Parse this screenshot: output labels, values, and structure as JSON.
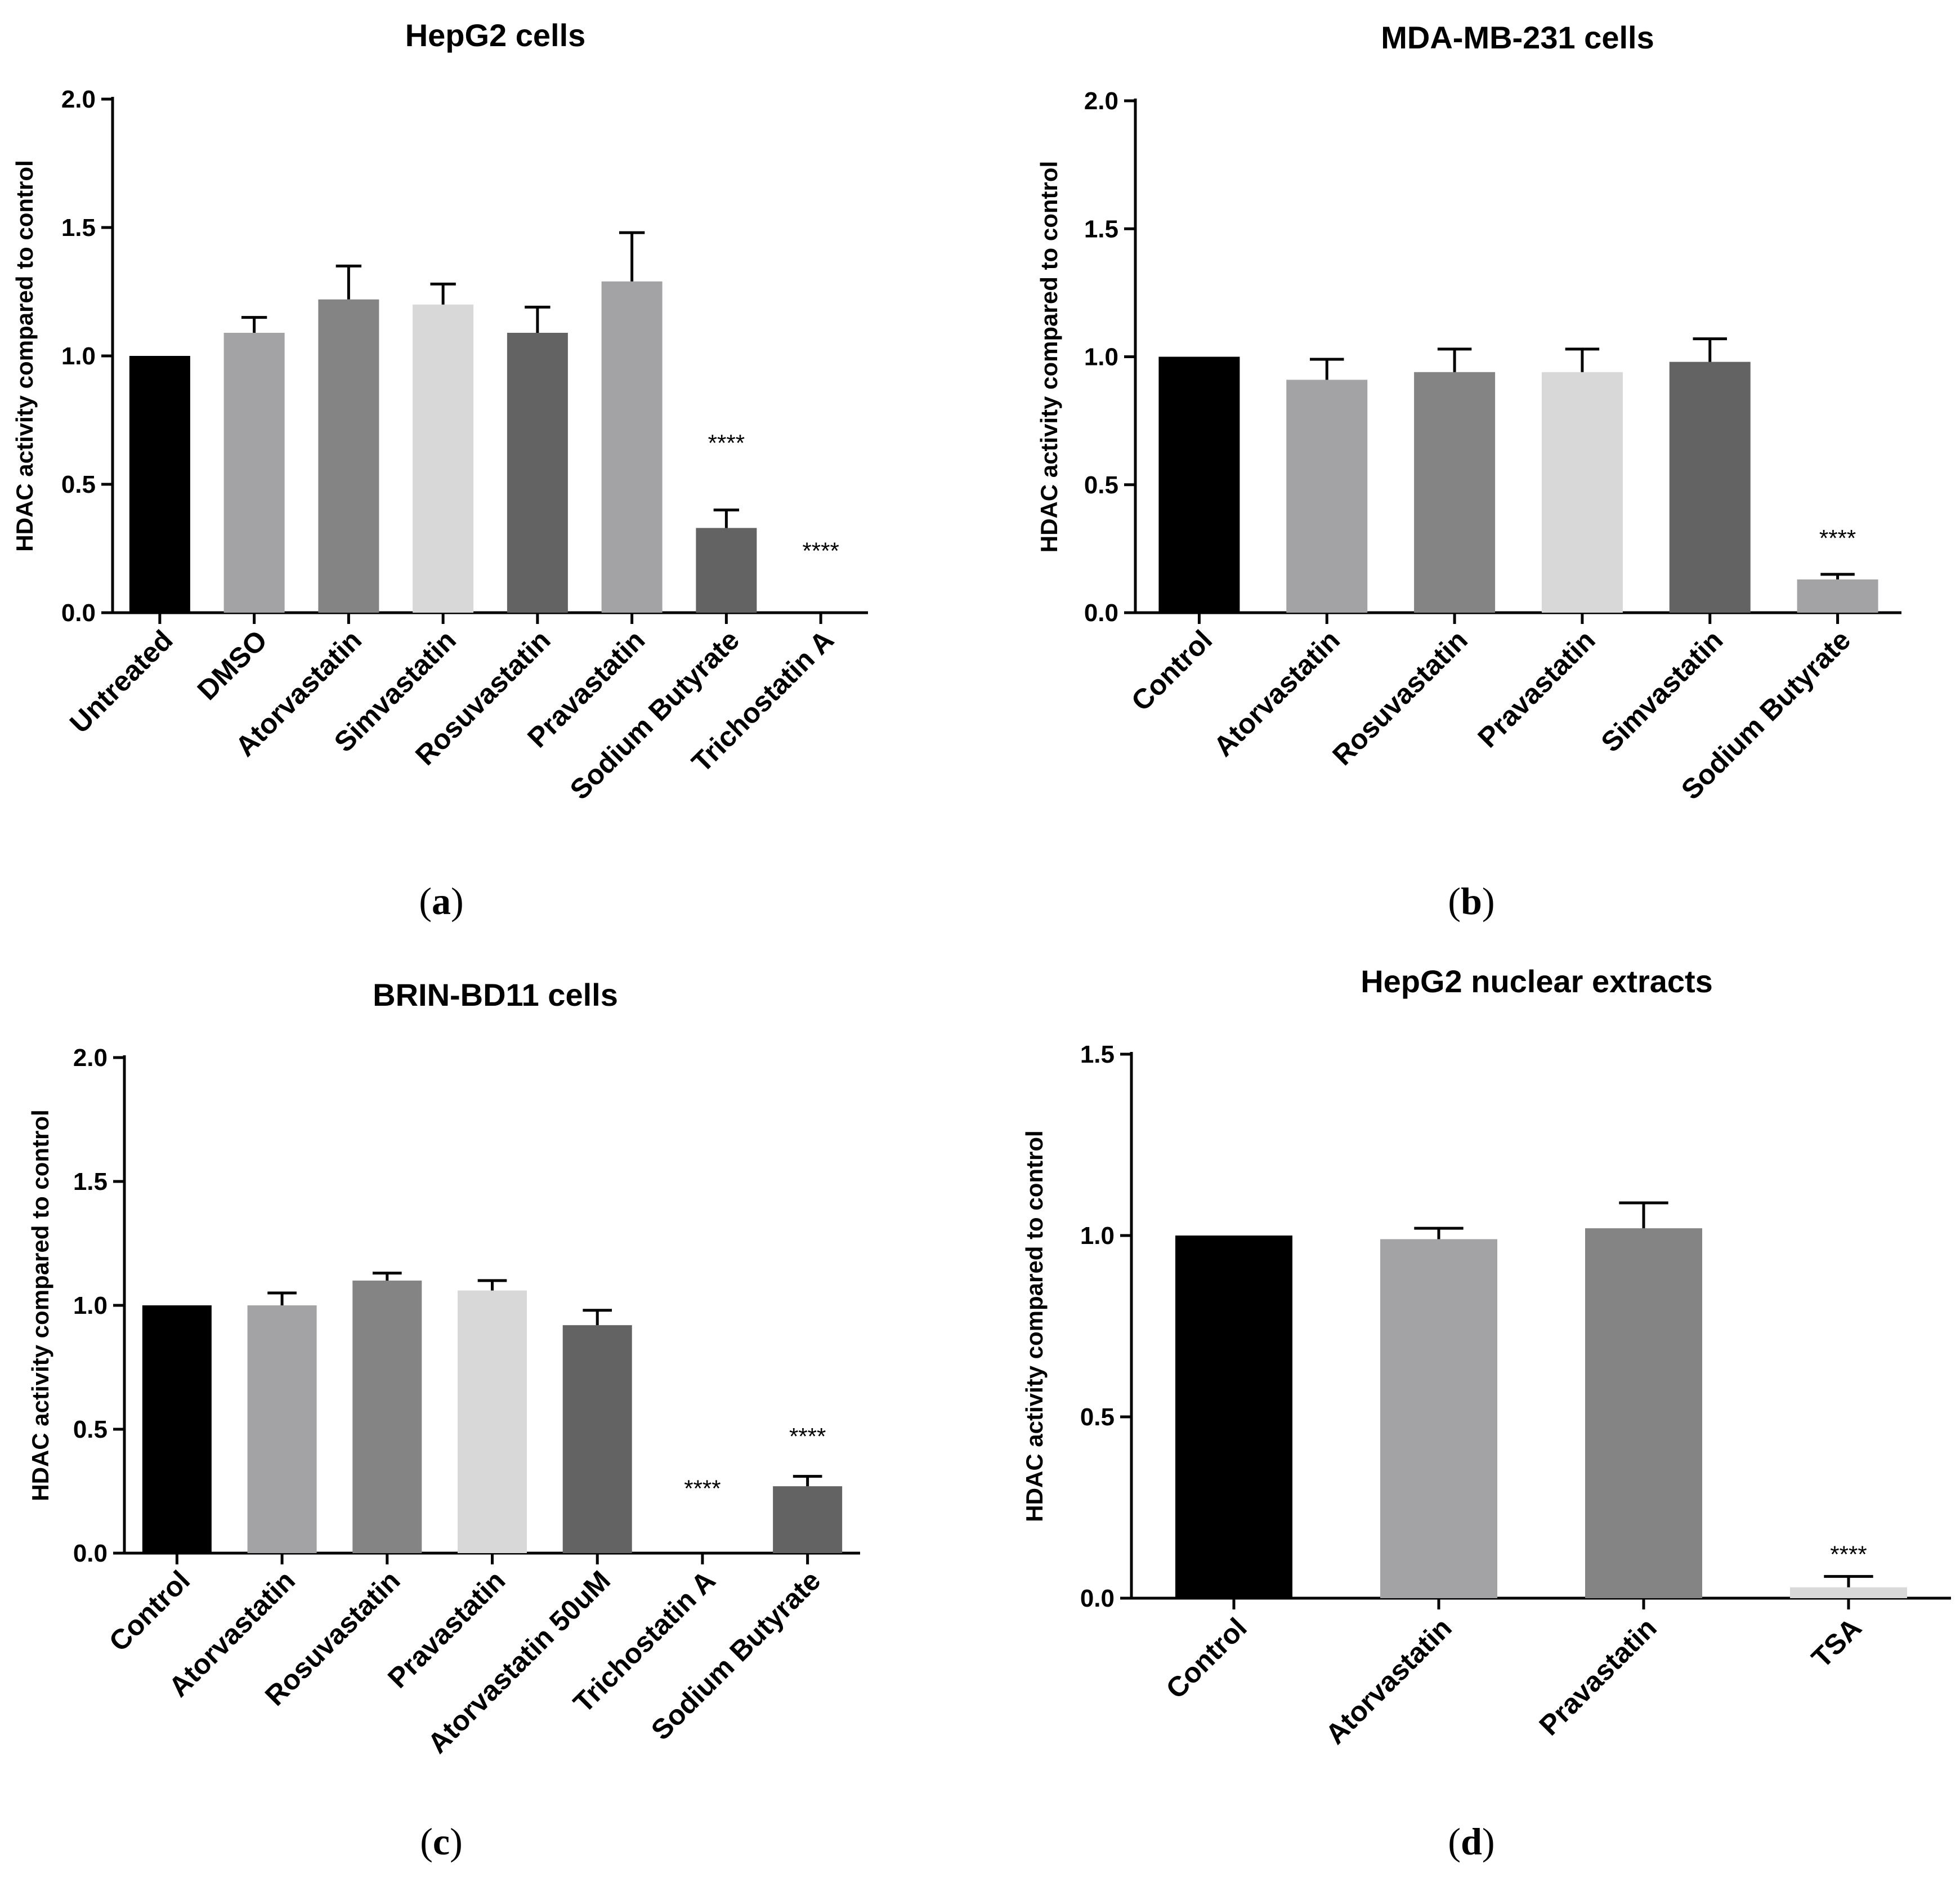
{
  "colors": {
    "black": "#000000",
    "mid_gray": "#a3a3a6",
    "dark_gray": "#848484",
    "light_gray": "#d8d8d8",
    "darker_gray": "#636363",
    "pale": "#d9d9d9"
  },
  "chart_data": [
    {
      "id": "a",
      "type": "bar",
      "title": "HepG2 cells",
      "panel_label": "a",
      "ylabel": "HDAC activity compared to control",
      "xlabel": "",
      "ylim": [
        0,
        2.0
      ],
      "yticks": [
        "0.0",
        "0.5",
        "1.0",
        "1.5",
        "2.0"
      ],
      "categories": [
        "Untreated",
        "DMSO",
        "Atorvastatin",
        "Simvastatin",
        "Rosuvastatin",
        "Pravastatin",
        "Sodium Butyrate",
        "Trichostatin A"
      ],
      "values": [
        1.0,
        1.09,
        1.22,
        1.2,
        1.09,
        1.29,
        0.33,
        0.0
      ],
      "errors": [
        0.0,
        0.06,
        0.13,
        0.08,
        0.1,
        0.19,
        0.07,
        0.0
      ],
      "bar_colors": [
        "#000000",
        "#a3a3a6",
        "#848484",
        "#d8d8d8",
        "#636363",
        "#a3a3a6",
        "#636363",
        "#d8d8d8"
      ],
      "significance": [
        "",
        "",
        "",
        "",
        "",
        "",
        "****",
        "****"
      ],
      "sig_values": [
        null,
        null,
        null,
        null,
        null,
        null,
        0.66,
        0.24
      ]
    },
    {
      "id": "b",
      "type": "bar",
      "title": "MDA-MB-231 cells",
      "panel_label": "b",
      "ylabel": "HDAC activity compared to control",
      "xlabel": "",
      "ylim": [
        0,
        2.0
      ],
      "yticks": [
        "0.0",
        "0.5",
        "1.0",
        "1.5",
        "2.0"
      ],
      "categories": [
        "Control",
        "Atorvastatin",
        "Rosuvastatin",
        "Pravastatin",
        "Simvastatin",
        "Sodium Butyrate"
      ],
      "values": [
        1.0,
        0.91,
        0.94,
        0.94,
        0.98,
        0.13
      ],
      "errors": [
        0.0,
        0.08,
        0.09,
        0.09,
        0.09,
        0.02
      ],
      "bar_colors": [
        "#000000",
        "#a3a3a6",
        "#848484",
        "#d8d8d8",
        "#636363",
        "#a3a3a6"
      ],
      "significance": [
        "",
        "",
        "",
        "",
        "",
        "****"
      ],
      "sig_values": [
        null,
        null,
        null,
        null,
        null,
        0.29
      ]
    },
    {
      "id": "c",
      "type": "bar",
      "title": "BRIN-BD11 cells",
      "panel_label": "c",
      "ylabel": "HDAC activity compared to control",
      "xlabel": "",
      "ylim": [
        0,
        2.0
      ],
      "yticks": [
        "0.0",
        "0.5",
        "1.0",
        "1.5",
        "2.0"
      ],
      "categories": [
        "Control",
        "Atorvastatin",
        "Rosuvastatin",
        "Pravastatin",
        "Atorvastatin 50uM",
        "Trichostatin A",
        "Sodium Butyrate"
      ],
      "values": [
        1.0,
        1.0,
        1.1,
        1.06,
        0.92,
        0.0,
        0.27
      ],
      "errors": [
        0.0,
        0.05,
        0.03,
        0.04,
        0.06,
        0.0,
        0.04
      ],
      "bar_colors": [
        "#000000",
        "#a3a3a6",
        "#848484",
        "#d8d8d8",
        "#636363",
        "#d8d8d8",
        "#636363"
      ],
      "significance": [
        "",
        "",
        "",
        "",
        "",
        "****",
        "****"
      ],
      "sig_values": [
        null,
        null,
        null,
        null,
        null,
        0.26,
        0.47
      ]
    },
    {
      "id": "d",
      "type": "bar",
      "title": "HepG2 nuclear extracts",
      "panel_label": "d",
      "ylabel": "HDAC activity compared to control",
      "xlabel": "",
      "ylim": [
        0,
        1.5
      ],
      "yticks": [
        "0.0",
        "0.5",
        "1.0",
        "1.5"
      ],
      "categories": [
        "Control",
        "Atorvastatin",
        "Pravastatin",
        "TSA"
      ],
      "values": [
        1.0,
        0.99,
        1.02,
        0.03
      ],
      "errors": [
        0.0,
        0.03,
        0.07,
        0.03
      ],
      "bar_colors": [
        "#000000",
        "#a3a3a6",
        "#848484",
        "#d9d9d9"
      ],
      "significance": [
        "",
        "",
        "",
        "****"
      ],
      "sig_values": [
        null,
        null,
        null,
        0.12
      ]
    }
  ]
}
